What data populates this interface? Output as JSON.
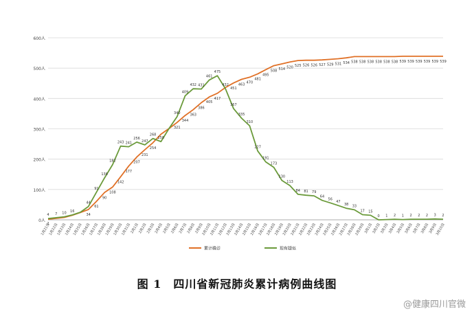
{
  "caption": "图 1　四川省新冠肺炎累计病例曲线图",
  "watermark": "@健康四川官微",
  "colors": {
    "cumulative": "#e07026",
    "current": "#6a9a3a",
    "grid": "#d9d9d9",
    "axis": "#999999",
    "text": "#444444"
  },
  "chart_data": {
    "type": "line",
    "ylim": [
      0,
      600
    ],
    "yticks": [
      {
        "value": 0,
        "label": "0人"
      },
      {
        "value": 100,
        "label": "100人"
      },
      {
        "value": 200,
        "label": "200人"
      },
      {
        "value": 300,
        "label": "300人"
      },
      {
        "value": 400,
        "label": "400人"
      },
      {
        "value": 500,
        "label": "500人"
      },
      {
        "value": 600,
        "label": "600人"
      }
    ],
    "grid": true,
    "legend_position": "bottom",
    "categories": [
      "1月21日",
      "1月22日",
      "1月23日",
      "1月24日",
      "1月25日",
      "1月26日",
      "1月27日",
      "1月28日",
      "1月29日",
      "1月30日",
      "1月31日",
      "2月1日",
      "2月2日",
      "2月3日",
      "2月4日",
      "2月5日",
      "2月6日",
      "2月7日",
      "2月8日",
      "2月9日",
      "2月10日",
      "2月11日",
      "2月12日",
      "2月13日",
      "2月14日",
      "2月15日",
      "2月16日",
      "2月17日",
      "2月18日",
      "2月19日",
      "2月20日",
      "2月21日",
      "2月22日",
      "2月23日",
      "2月24日",
      "2月25日",
      "2月26日",
      "2月27日",
      "2月28日",
      "2月29日",
      "3月1日",
      "3月2日",
      "3月3日",
      "3月4日",
      "3月5日",
      "3月6日",
      "3月7日",
      "3月8日",
      "3月9日",
      "3月10日"
    ],
    "series": [
      {
        "name": "累计确诊",
        "color": "#e07026",
        "values": [
          2,
          5,
          8,
          15,
          24,
          34,
          61,
          90,
          108,
          142,
          177,
          207,
          231,
          254,
          282,
          301,
          321,
          344,
          363,
          386,
          405,
          417,
          436,
          451,
          463,
          470,
          481,
          495,
          508,
          514,
          520,
          525,
          526,
          526,
          527,
          529,
          531,
          534,
          538,
          538,
          538,
          538,
          538,
          538,
          539,
          539,
          539,
          539,
          539,
          539
        ],
        "labels": [
          "2",
          "",
          "",
          "",
          "",
          "34",
          "61",
          "90",
          "108",
          "142",
          "177",
          "207",
          "231",
          "254",
          "",
          "",
          "321",
          "344",
          "363",
          "386",
          "405",
          "417",
          "",
          "451",
          "463",
          "470",
          "481",
          "495",
          "508",
          "514",
          "520",
          "525",
          "526",
          "526",
          "527",
          "529",
          "531",
          "534",
          "538",
          "538",
          "538",
          "538",
          "538",
          "538",
          "539",
          "539",
          "539",
          "539",
          "539",
          "539"
        ]
      },
      {
        "name": "现有疑似",
        "color": "#6a9a3a",
        "values": [
          4,
          7,
          10,
          16,
          25,
          44,
          91,
          138,
          182,
          243,
          241,
          256,
          247,
          268,
          258,
          301,
          340,
          409,
          432,
          431,
          461,
          475,
          432,
          367,
          335,
          310,
          227,
          191,
          173,
          130,
          113,
          84,
          81,
          79,
          64,
          56,
          47,
          38,
          33,
          17,
          15,
          0,
          1,
          2,
          1,
          2,
          2,
          2,
          3,
          2
        ],
        "labels": [
          "4",
          "7",
          "10",
          "16",
          "",
          "44",
          "91",
          "138",
          "182",
          "243",
          "241",
          "256",
          "247",
          "268",
          "258",
          "",
          "340",
          "409",
          "432",
          "431",
          "461",
          "475",
          "432",
          "367",
          "335",
          "310",
          "227",
          "191",
          "173",
          "130",
          "113",
          "84",
          "81",
          "79",
          "64",
          "56",
          "47",
          "38",
          "33",
          "17",
          "15",
          "0",
          "1",
          "2",
          "1",
          "2",
          "2",
          "2",
          "3",
          "2"
        ]
      }
    ]
  }
}
